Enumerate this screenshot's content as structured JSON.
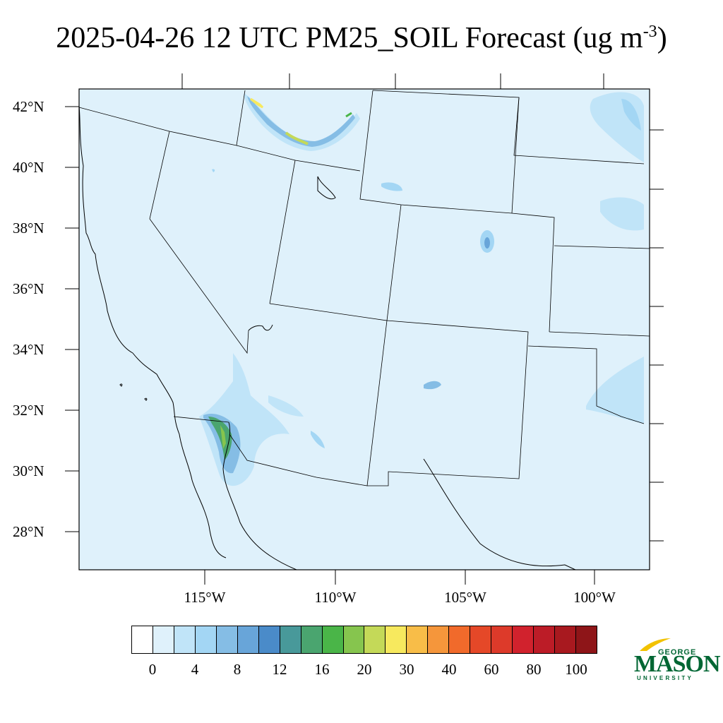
{
  "title": {
    "text": "2025-04-26 12 UTC PM25_SOIL Forecast (ug m",
    "sup": "-3",
    "close": ")"
  },
  "map": {
    "lat_labels": [
      "42°N",
      "40°N",
      "38°N",
      "36°N",
      "34°N",
      "32°N",
      "30°N",
      "28°N"
    ],
    "lon_labels": [
      "115°W",
      "110°W",
      "105°W",
      "100°W"
    ],
    "background_color": "#dff1fb"
  },
  "colorbar": {
    "colors": [
      "#ffffff",
      "#dff1fb",
      "#c0e4f8",
      "#a3d6f4",
      "#85bde5",
      "#68a5d9",
      "#4a8bc9",
      "#48999a",
      "#4aa56f",
      "#4ab548",
      "#86c54e",
      "#c4d958",
      "#f7e95e",
      "#f8bd48",
      "#f5963b",
      "#f16a2b",
      "#e54828",
      "#dd3a2a",
      "#d1222d",
      "#bc1c27",
      "#a8191f",
      "#8e1518"
    ],
    "labels": [
      "0",
      "4",
      "8",
      "12",
      "16",
      "20",
      "30",
      "40",
      "60",
      "80",
      "100"
    ]
  },
  "logo": {
    "george": "GEORGE",
    "mason": "MASON",
    "university": "UNIVERSITY"
  }
}
